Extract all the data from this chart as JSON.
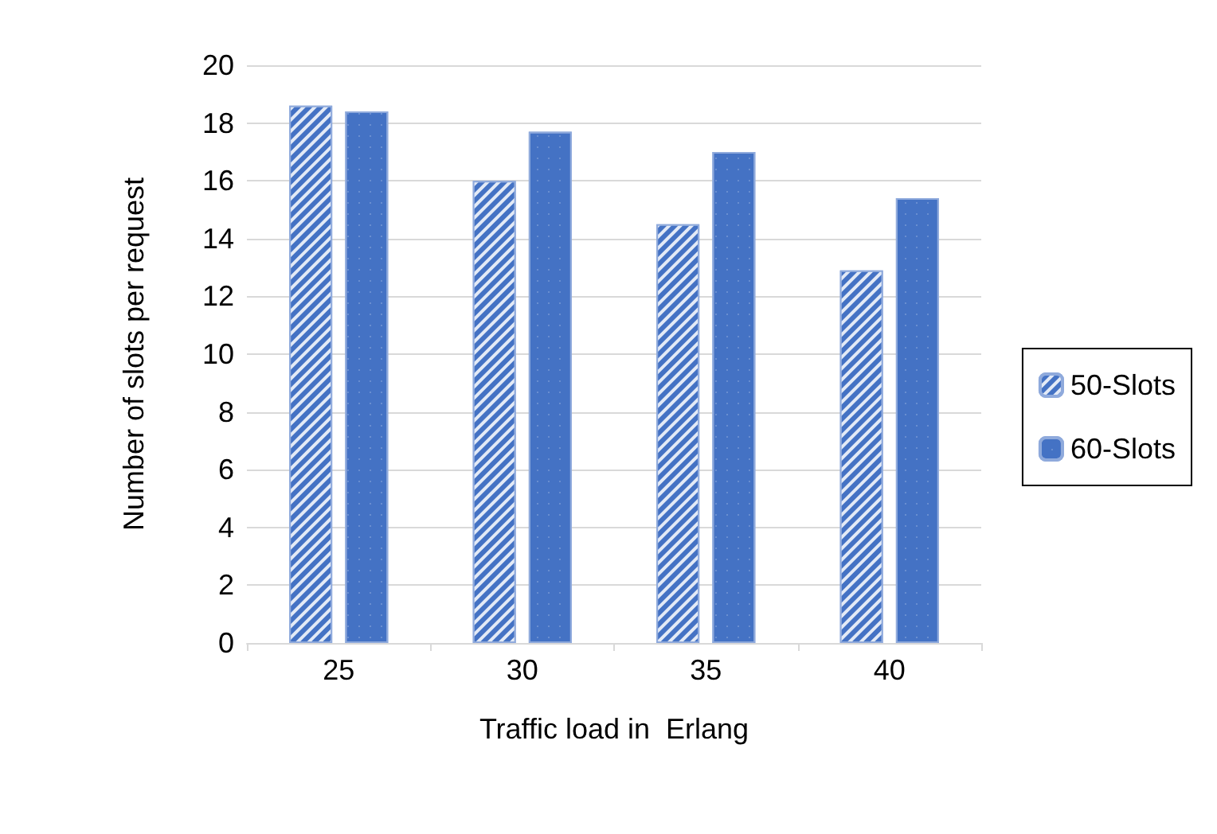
{
  "chart_data": {
    "type": "bar",
    "xlabel": "Traffic load in  Erlang",
    "ylabel": "Number of slots per request",
    "categories": [
      "25",
      "30",
      "35",
      "40"
    ],
    "series": [
      {
        "name": "50-Slots",
        "color": "#4472c4",
        "values": [
          18.6,
          16.0,
          14.5,
          12.9
        ]
      },
      {
        "name": "60-Slots",
        "color": "#4472c4",
        "values": [
          18.4,
          17.7,
          17.0,
          15.4
        ]
      }
    ],
    "ylim": [
      0,
      20
    ],
    "yticks": [
      0,
      2,
      4,
      6,
      8,
      10,
      12,
      14,
      16,
      18,
      20
    ],
    "grid": "y",
    "legend": "right"
  }
}
